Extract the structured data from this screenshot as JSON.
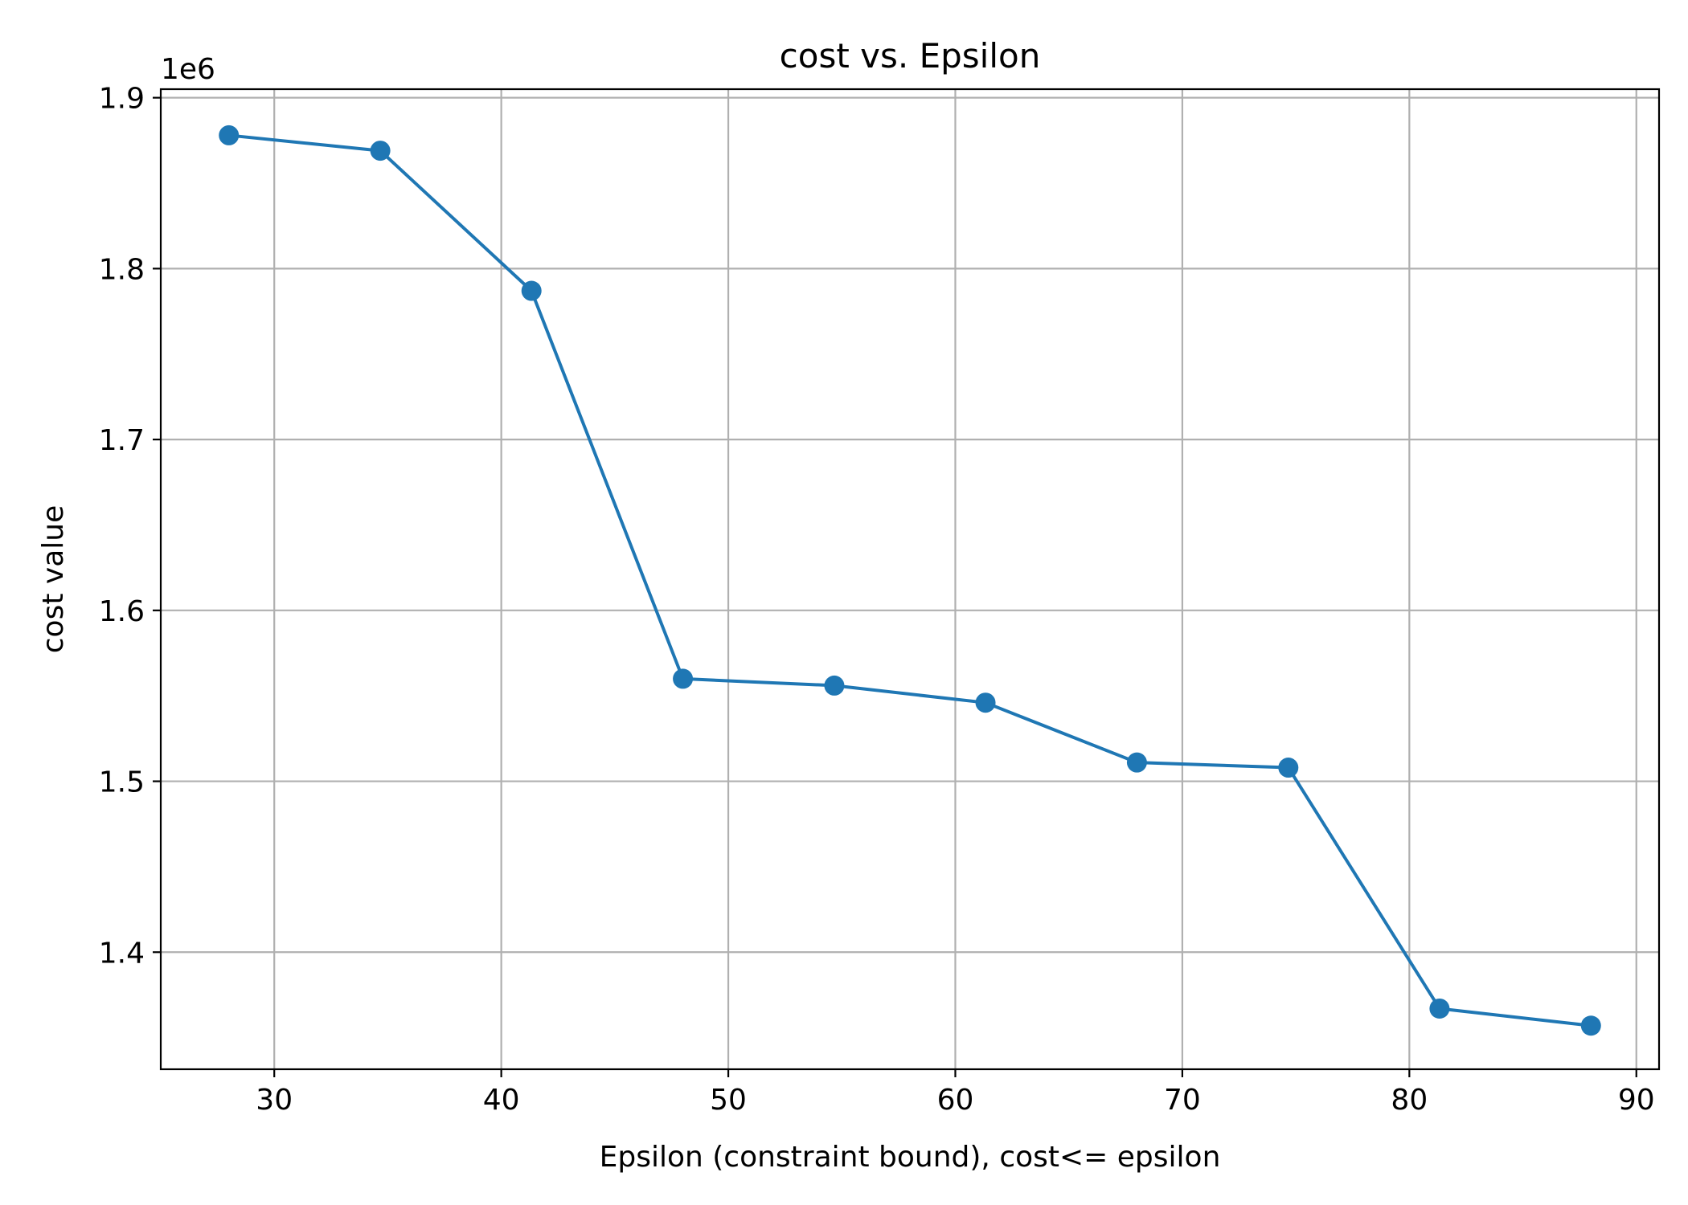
{
  "chart_data": {
    "type": "line",
    "title": "cost vs. Epsilon",
    "xlabel": "Epsilon (constraint bound), cost<= epsilon",
    "ylabel": "cost value",
    "y_offset_label": "1e6",
    "xlim": [
      25,
      91
    ],
    "ylim": [
      1.3315,
      1.905
    ],
    "xticks": [
      30,
      40,
      50,
      60,
      70,
      80,
      90
    ],
    "yticks": [
      1.4,
      1.5,
      1.6,
      1.7,
      1.8,
      1.9
    ],
    "xtick_labels": [
      "30",
      "40",
      "50",
      "60",
      "70",
      "80",
      "90"
    ],
    "ytick_labels": [
      "1.4",
      "1.5",
      "1.6",
      "1.7",
      "1.8",
      "1.9"
    ],
    "grid": true,
    "color": "#1f77b4",
    "series": [
      {
        "x": [
          28.0,
          34.67,
          41.33,
          48.0,
          54.67,
          61.33,
          68.0,
          74.67,
          81.33,
          88.0
        ],
        "y": [
          1.878,
          1.869,
          1.787,
          1.56,
          1.556,
          1.546,
          1.511,
          1.508,
          1.367,
          1.357
        ]
      }
    ]
  }
}
